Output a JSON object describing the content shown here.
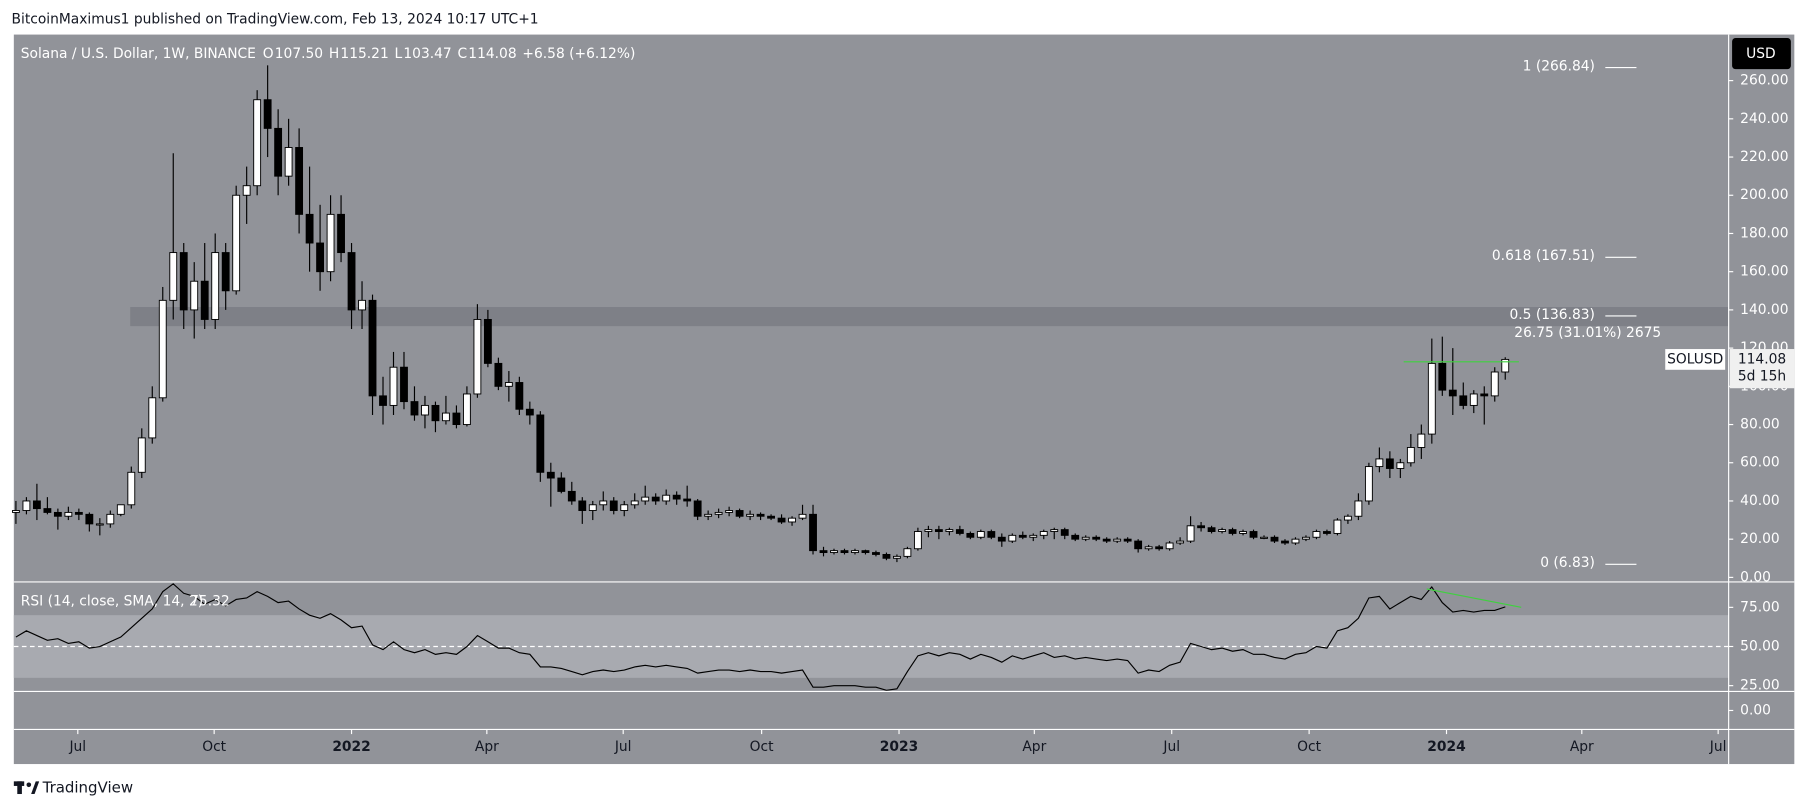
{
  "header": {
    "publisher": "BitcoinMaximus1 published on TradingView.com, Feb 13, 2024 10:17 UTC+1",
    "logo": "TradingView"
  },
  "chart_data": {
    "type": "candlestick",
    "title": "Solana / U.S. Dollar, 1W, BINANCE",
    "ohlc_legend": [
      {
        "key": "O",
        "text": "107.50"
      },
      {
        "key": "H",
        "text": "115.21"
      },
      {
        "key": "L",
        "text": "103.47"
      },
      {
        "key": "C",
        "text": "114.08"
      }
    ],
    "change": "+6.58 (+6.12%)",
    "currency": "USD",
    "symbol": "SOLUSD",
    "last_price": 114.08,
    "countdown": "5d 15h",
    "up_color": "#ffffff",
    "down_color": "#000000",
    "candles": [
      [
        34,
        40,
        28,
        35
      ],
      [
        35,
        42,
        33,
        40
      ],
      [
        40,
        49,
        30,
        36
      ],
      [
        36,
        42,
        33,
        34
      ],
      [
        34,
        36,
        25,
        32
      ],
      [
        32,
        37,
        30,
        34
      ],
      [
        34,
        36,
        30,
        33
      ],
      [
        33,
        34,
        24,
        28
      ],
      [
        28,
        31,
        22,
        28
      ],
      [
        28,
        35,
        26,
        33
      ],
      [
        33,
        38,
        32,
        38
      ],
      [
        38,
        58,
        36,
        55
      ],
      [
        55,
        78,
        52,
        73
      ],
      [
        73,
        100,
        70,
        94
      ],
      [
        94,
        152,
        92,
        145
      ],
      [
        145,
        222,
        135,
        170
      ],
      [
        170,
        175,
        130,
        140
      ],
      [
        140,
        165,
        125,
        155
      ],
      [
        155,
        175,
        130,
        135
      ],
      [
        135,
        180,
        130,
        170
      ],
      [
        170,
        175,
        140,
        150
      ],
      [
        150,
        205,
        148,
        200
      ],
      [
        200,
        215,
        185,
        205
      ],
      [
        205,
        255,
        200,
        250
      ],
      [
        250,
        268,
        220,
        235
      ],
      [
        235,
        245,
        200,
        210
      ],
      [
        210,
        240,
        205,
        225
      ],
      [
        225,
        235,
        180,
        190
      ],
      [
        190,
        215,
        160,
        175
      ],
      [
        175,
        195,
        150,
        160
      ],
      [
        160,
        200,
        155,
        190
      ],
      [
        190,
        200,
        165,
        170
      ],
      [
        170,
        175,
        130,
        140
      ],
      [
        140,
        155,
        130,
        145
      ],
      [
        145,
        148,
        85,
        95
      ],
      [
        95,
        105,
        80,
        90
      ],
      [
        90,
        118,
        85,
        110
      ],
      [
        110,
        118,
        88,
        92
      ],
      [
        92,
        100,
        82,
        85
      ],
      [
        85,
        95,
        78,
        90
      ],
      [
        90,
        92,
        76,
        82
      ],
      [
        82,
        95,
        80,
        86
      ],
      [
        86,
        90,
        78,
        80
      ],
      [
        80,
        100,
        79,
        96
      ],
      [
        96,
        143,
        94,
        135
      ],
      [
        135,
        140,
        110,
        112
      ],
      [
        112,
        115,
        98,
        100
      ],
      [
        100,
        108,
        92,
        102
      ],
      [
        102,
        105,
        85,
        88
      ],
      [
        88,
        92,
        80,
        85
      ],
      [
        85,
        87,
        50,
        55
      ],
      [
        55,
        60,
        37,
        52
      ],
      [
        52,
        55,
        44,
        45
      ],
      [
        45,
        50,
        38,
        40
      ],
      [
        40,
        42,
        28,
        35
      ],
      [
        35,
        40,
        30,
        38
      ],
      [
        38,
        45,
        35,
        40
      ],
      [
        40,
        42,
        33,
        35
      ],
      [
        35,
        40,
        32,
        38
      ],
      [
        38,
        44,
        36,
        40
      ],
      [
        40,
        48,
        38,
        42
      ],
      [
        42,
        44,
        38,
        40
      ],
      [
        40,
        46,
        38,
        43
      ],
      [
        43,
        45,
        38,
        41
      ],
      [
        41,
        48,
        37,
        40
      ],
      [
        40,
        41,
        30,
        32
      ],
      [
        32,
        35,
        30,
        33
      ],
      [
        33,
        36,
        31,
        34
      ],
      [
        34,
        37,
        32,
        35
      ],
      [
        35,
        36,
        31,
        32
      ],
      [
        32,
        35,
        30,
        33
      ],
      [
        33,
        34,
        30,
        32
      ],
      [
        32,
        33,
        30,
        31
      ],
      [
        31,
        33,
        28,
        29
      ],
      [
        29,
        32,
        27,
        31
      ],
      [
        31,
        38,
        30,
        33
      ],
      [
        33,
        38,
        12,
        14
      ],
      [
        14,
        16,
        11,
        13
      ],
      [
        13,
        15,
        12,
        14
      ],
      [
        14,
        15,
        12,
        13
      ],
      [
        13,
        15,
        12,
        14
      ],
      [
        14,
        14.5,
        12,
        13
      ],
      [
        13,
        14,
        11,
        12
      ],
      [
        12,
        13,
        9,
        10
      ],
      [
        10,
        12,
        8,
        11
      ],
      [
        11,
        16,
        10,
        15
      ],
      [
        15,
        26,
        14,
        24
      ],
      [
        24,
        27,
        21,
        25
      ],
      [
        25,
        27,
        20,
        24
      ],
      [
        24,
        26,
        22,
        25
      ],
      [
        25,
        27,
        22,
        23
      ],
      [
        23,
        24,
        20,
        21
      ],
      [
        21,
        25,
        20,
        24
      ],
      [
        24,
        25,
        20,
        21
      ],
      [
        21,
        23,
        16,
        19
      ],
      [
        19,
        23,
        18,
        22
      ],
      [
        22,
        24,
        20,
        21
      ],
      [
        21,
        23,
        19,
        22
      ],
      [
        22,
        25,
        20,
        24
      ],
      [
        24,
        26,
        20,
        25
      ],
      [
        25,
        26,
        20,
        22
      ],
      [
        22,
        23,
        19,
        20
      ],
      [
        20,
        22,
        19,
        21
      ],
      [
        21,
        22,
        19,
        20
      ],
      [
        20,
        21,
        18,
        19
      ],
      [
        19,
        21,
        18,
        20
      ],
      [
        20,
        21,
        18,
        19
      ],
      [
        19,
        20,
        13,
        15
      ],
      [
        15,
        17,
        14,
        16
      ],
      [
        16,
        17,
        14,
        15
      ],
      [
        15,
        19,
        14,
        18
      ],
      [
        18,
        21,
        17,
        19
      ],
      [
        19,
        32,
        18,
        27
      ],
      [
        27,
        29,
        24,
        26
      ],
      [
        26,
        27,
        23,
        24
      ],
      [
        24,
        26,
        23,
        25
      ],
      [
        25,
        26,
        22,
        23
      ],
      [
        23,
        25,
        22,
        24
      ],
      [
        24,
        25,
        20,
        21
      ],
      [
        21,
        22,
        20,
        21
      ],
      [
        21,
        22,
        18,
        19
      ],
      [
        19,
        20,
        17,
        18
      ],
      [
        18,
        21,
        17,
        20
      ],
      [
        20,
        22,
        19,
        21
      ],
      [
        21,
        25,
        20,
        24
      ],
      [
        24,
        25,
        22,
        23
      ],
      [
        23,
        31,
        22,
        30
      ],
      [
        30,
        33,
        28,
        32
      ],
      [
        32,
        44,
        30,
        40
      ],
      [
        40,
        60,
        38,
        58
      ],
      [
        58,
        68,
        55,
        62
      ],
      [
        62,
        66,
        52,
        57
      ],
      [
        57,
        62,
        52,
        60
      ],
      [
        60,
        75,
        58,
        68
      ],
      [
        68,
        80,
        62,
        75
      ],
      [
        75,
        125,
        70,
        112
      ],
      [
        112,
        126,
        95,
        98
      ],
      [
        98,
        120,
        85,
        95
      ],
      [
        95,
        102,
        88,
        90
      ],
      [
        90,
        98,
        86,
        96
      ],
      [
        96,
        100,
        80,
        95
      ],
      [
        95,
        110,
        92,
        107.5
      ],
      [
        107.5,
        115.21,
        103.47,
        114.08
      ]
    ],
    "xlim": [
      -0.2,
      163.3
    ],
    "xticks": [
      {
        "value": 5.9,
        "label": "Jul"
      },
      {
        "value": 18.9,
        "label": "Oct"
      },
      {
        "value": 32,
        "label": "2022"
      },
      {
        "value": 44.9,
        "label": "Apr"
      },
      {
        "value": 57.9,
        "label": "Jul"
      },
      {
        "value": 71.1,
        "label": "Oct"
      },
      {
        "value": 84.2,
        "label": "2023"
      },
      {
        "value": 97.1,
        "label": "Apr"
      },
      {
        "value": 110.2,
        "label": "Jul"
      },
      {
        "value": 123.3,
        "label": "Oct"
      },
      {
        "value": 136.4,
        "label": "2024"
      },
      {
        "value": 149.3,
        "label": "Apr"
      },
      {
        "value": 162.3,
        "label": "Jul"
      }
    ],
    "ylim": [
      -2.4,
      284.1
    ],
    "yticks": [
      {
        "value": 0,
        "label": "0.00"
      },
      {
        "value": 20,
        "label": "20.00"
      },
      {
        "value": 40,
        "label": "40.00"
      },
      {
        "value": 60,
        "label": "60.00"
      },
      {
        "value": 80,
        "label": "80.00"
      },
      {
        "value": 100,
        "label": "100.00"
      },
      {
        "value": 120,
        "label": "120.00"
      },
      {
        "value": 140,
        "label": "140.00"
      },
      {
        "value": 160,
        "label": "160.00"
      },
      {
        "value": 180,
        "label": "180.00"
      },
      {
        "value": 200,
        "label": "200.00"
      },
      {
        "value": 220,
        "label": "220.00"
      },
      {
        "value": 240,
        "label": "240.00"
      },
      {
        "value": 260,
        "label": "260.00"
      }
    ],
    "fib_levels": [
      {
        "label": "1 (266.84)",
        "value": 266.84
      },
      {
        "label": "0.618 (167.51)",
        "value": 167.51
      },
      {
        "label": "0.5 (136.83)",
        "value": 136.83
      },
      {
        "label": "0 (6.83)",
        "value": 6.83
      }
    ],
    "resistance_zone": [
      131.5,
      141.5
    ],
    "measure_label": "26.75 (31.01%) 2675",
    "rsi": {
      "title": "RSI (14, close, SMA, 14, 2)",
      "last": 75.32,
      "color": "#000000",
      "band": [
        30,
        70
      ],
      "midline": 50,
      "ylim": [
        21.3,
        91.2
      ],
      "yticks": [
        {
          "value": 25,
          "label": "25.00"
        },
        {
          "value": 50,
          "label": "50.00"
        },
        {
          "value": 75,
          "label": "75.00"
        }
      ],
      "values": [
        56,
        60,
        57,
        54,
        55,
        52,
        53,
        49,
        50,
        53,
        56,
        62,
        68,
        74,
        85,
        90,
        84,
        82,
        77,
        80,
        76,
        80,
        81,
        85,
        82,
        78,
        79,
        74,
        70,
        68,
        71,
        67,
        62,
        63,
        51,
        48,
        53,
        48,
        46,
        48,
        45,
        46,
        45,
        50,
        57,
        53,
        49,
        49,
        46,
        45,
        37,
        37,
        36,
        34,
        32,
        34,
        35,
        34,
        35,
        37,
        38,
        37,
        38,
        37,
        36,
        33,
        34,
        35,
        35,
        34,
        35,
        34,
        34,
        33,
        34,
        35,
        24,
        24,
        25,
        25,
        25,
        24,
        24,
        22,
        23,
        34,
        44,
        46,
        44,
        46,
        45,
        42,
        45,
        43,
        40,
        44,
        42,
        44,
        46,
        43,
        44,
        42,
        43,
        42,
        41,
        42,
        41,
        33,
        35,
        34,
        38,
        40,
        52,
        50,
        48,
        49,
        47,
        48,
        45,
        45,
        43,
        42,
        45,
        46,
        50,
        49,
        60,
        62,
        68,
        81,
        82,
        74,
        78,
        82,
        80,
        88,
        78,
        72,
        73,
        72,
        73,
        73,
        75.32
      ]
    },
    "empty_pane": {
      "ylim": [
        -1,
        1
      ],
      "yticks": [
        {
          "value": 0,
          "label": "0.00"
        }
      ]
    }
  }
}
